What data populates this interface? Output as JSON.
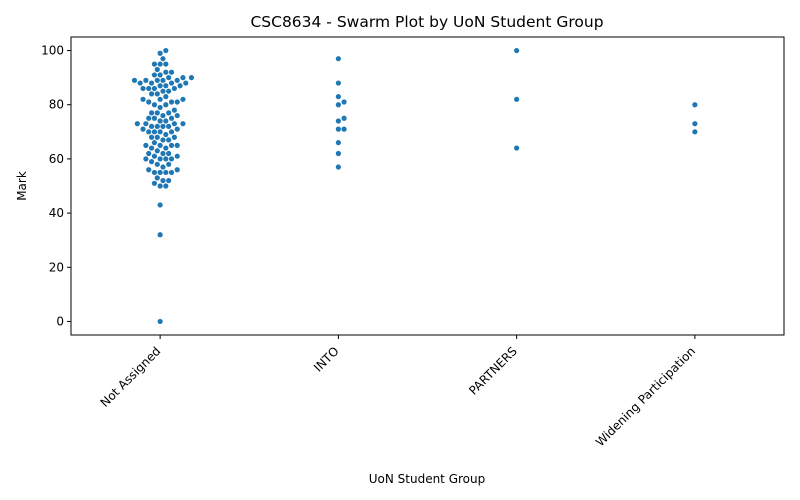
{
  "chart_data": {
    "type": "scatter",
    "subtype": "swarm",
    "title": "CSC8634 - Swarm Plot by UoN Student Group",
    "xlabel": "UoN Student Group",
    "ylabel": "Mark",
    "ylim": [
      -5,
      105
    ],
    "yticks": [
      0,
      20,
      40,
      60,
      80,
      100
    ],
    "xtick_rotation": 45,
    "grid": false,
    "legend": "none",
    "color": "#1f77b4",
    "categories": [
      "Not Assigned",
      "INTO",
      "PARTNERS",
      "Widening Participation"
    ],
    "series": [
      {
        "category": "Not Assigned",
        "values": [
          100,
          99,
          97,
          95,
          95,
          95,
          93,
          92,
          92,
          91,
          91,
          90,
          90,
          90,
          89,
          89,
          89,
          89,
          89,
          88,
          88,
          88,
          88,
          87,
          87,
          87,
          86,
          86,
          86,
          86,
          85,
          85,
          84,
          84,
          83,
          82,
          82,
          82,
          81,
          81,
          81,
          80,
          80,
          79,
          78,
          77,
          77,
          77,
          76,
          76,
          75,
          75,
          75,
          74,
          74,
          73,
          73,
          73,
          73,
          72,
          72,
          72,
          72,
          71,
          71,
          70,
          70,
          70,
          70,
          69,
          68,
          68,
          68,
          67,
          67,
          66,
          65,
          65,
          65,
          65,
          64,
          64,
          63,
          62,
          62,
          62,
          61,
          61,
          60,
          60,
          60,
          60,
          59,
          58,
          58,
          57,
          56,
          56,
          55,
          55,
          55,
          55,
          53,
          52,
          52,
          51,
          50,
          50,
          43,
          32,
          0
        ]
      },
      {
        "category": "INTO",
        "values": [
          97,
          88,
          83,
          81,
          80,
          75,
          74,
          71,
          71,
          66,
          62,
          57
        ]
      },
      {
        "category": "PARTNERS",
        "values": [
          100,
          82,
          64
        ]
      },
      {
        "category": "Widening Participation",
        "values": [
          80,
          73,
          70
        ]
      }
    ]
  }
}
